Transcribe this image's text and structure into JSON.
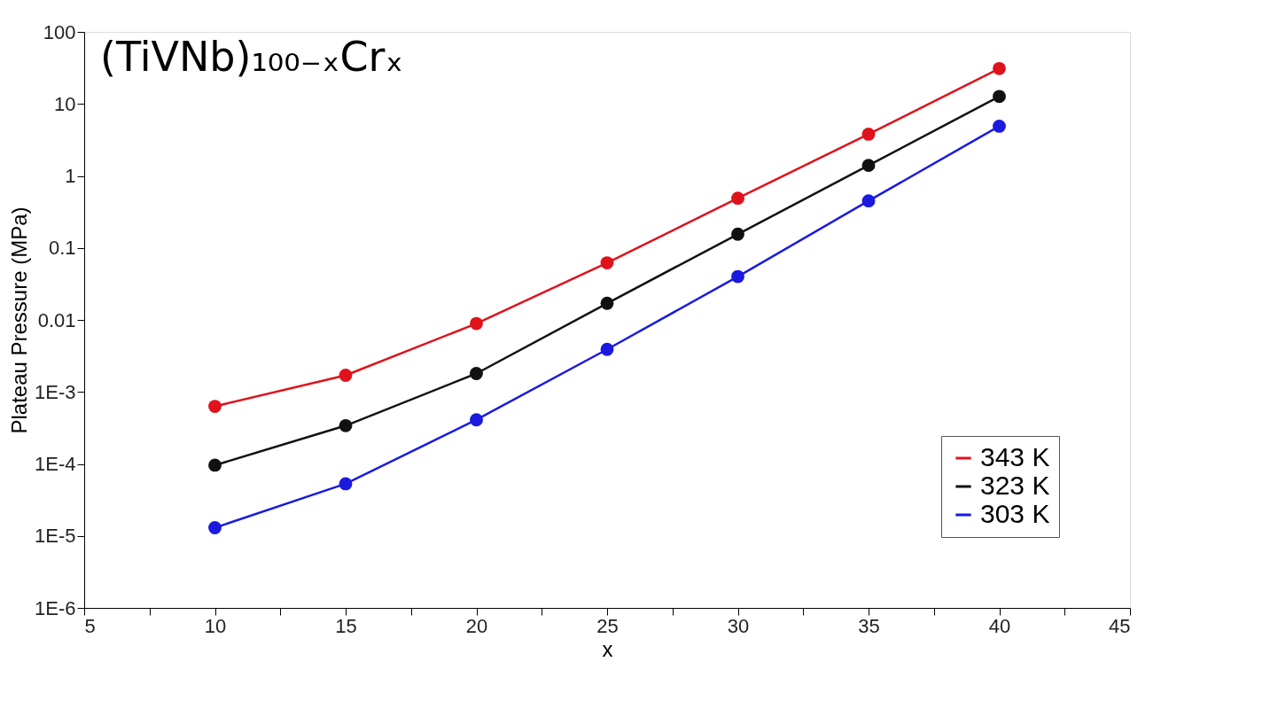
{
  "chart_data": {
    "type": "line",
    "title": "(TiVNb)₁₀₀₋ₓCrₓ",
    "xlabel": "x",
    "ylabel": "Plateau Pressure (MPa)",
    "x": [
      10,
      15,
      20,
      25,
      30,
      35,
      40
    ],
    "series": [
      {
        "name": "343 K",
        "color": "#e0121b",
        "values": [
          0.00063,
          0.0017,
          0.0089,
          0.062,
          0.49,
          3.8,
          31
        ]
      },
      {
        "name": "323 K",
        "color": "#111111",
        "values": [
          9.6e-05,
          0.00034,
          0.0018,
          0.017,
          0.155,
          1.4,
          12.7
        ]
      },
      {
        "name": "303 K",
        "color": "#1a1ae0",
        "values": [
          1.3e-05,
          5.3e-05,
          0.00041,
          0.0039,
          0.04,
          0.45,
          4.9
        ]
      }
    ],
    "xlim": [
      5,
      45
    ],
    "xticks": [
      5,
      {
        "value": 7.5,
        "label": null
      },
      10,
      {
        "value": 12.5,
        "label": null
      },
      15,
      {
        "value": 17.5,
        "label": null
      },
      20,
      {
        "value": 22.5,
        "label": null
      },
      25,
      {
        "value": 27.5,
        "label": null
      },
      30,
      {
        "value": 32.5,
        "label": null
      },
      35,
      {
        "value": 37.5,
        "label": null
      },
      40,
      {
        "value": 42.5,
        "label": null
      },
      45
    ],
    "ylim": [
      1e-06,
      100
    ],
    "yticks": [
      {
        "value": 1e-06,
        "label": "1E-6"
      },
      {
        "value": 1e-05,
        "label": "1E-5"
      },
      {
        "value": 0.0001,
        "label": "1E-4"
      },
      {
        "value": 0.001,
        "label": "1E-3"
      },
      0.01,
      0.1,
      1,
      10,
      100
    ],
    "log": "y",
    "grid": false,
    "legend": "bottom right",
    "marker": "circle",
    "line_style": "solid"
  }
}
